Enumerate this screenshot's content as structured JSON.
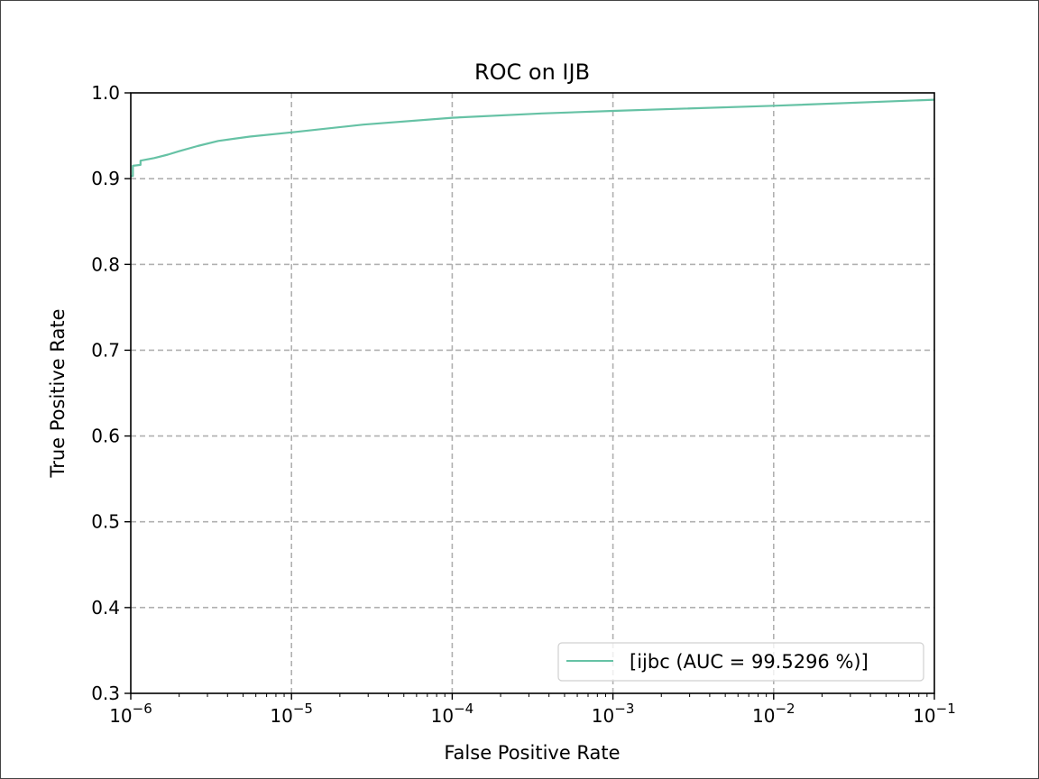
{
  "chart_data": {
    "type": "line",
    "title": "ROC on IJB",
    "xlabel": "False Positive Rate",
    "ylabel": "True Positive Rate",
    "xscale": "log",
    "xlim": [
      1e-06,
      0.1
    ],
    "ylim": [
      0.3,
      1.0
    ],
    "grid": true,
    "legend_position": "lower right",
    "xticks": [
      "10^-6",
      "10^-5",
      "10^-4",
      "10^-3",
      "10^-2",
      "10^-1"
    ],
    "xtick_bases": [
      "10",
      "10",
      "10",
      "10",
      "10",
      "10"
    ],
    "xtick_exps": [
      "−6",
      "−5",
      "−4",
      "−3",
      "−2",
      "−1"
    ],
    "yticks": [
      "0.3",
      "0.4",
      "0.5",
      "0.6",
      "0.7",
      "0.8",
      "0.9",
      "1.0"
    ],
    "series": [
      {
        "name": "[ijbc (AUC = 99.5296 %)]",
        "color": "#66c2a5",
        "x": [
          1e-06,
          1.03e-06,
          1.03e-06,
          1.15e-06,
          1.15e-06,
          1.4e-06,
          1.7e-06,
          2e-06,
          2.6e-06,
          3.5e-06,
          5.5e-06,
          1e-05,
          2.8e-05,
          0.0001,
          0.00036,
          0.001,
          0.01,
          0.1
        ],
        "y": [
          0.903,
          0.903,
          0.915,
          0.916,
          0.921,
          0.924,
          0.928,
          0.932,
          0.938,
          0.944,
          0.949,
          0.954,
          0.963,
          0.971,
          0.976,
          0.979,
          0.985,
          0.992
        ]
      }
    ]
  },
  "legend": {
    "label": "[ijbc (AUC = 99.5296 %)]"
  }
}
